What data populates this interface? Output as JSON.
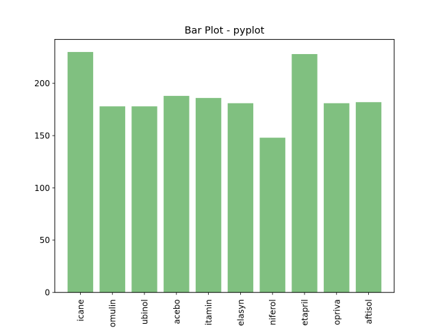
{
  "chart_data": {
    "type": "bar",
    "title": "Bar Plot - pyplot",
    "xlabel": "",
    "ylabel": "",
    "categories": [
      "icane",
      "omulin",
      "ubinol",
      "acebo",
      "itamin",
      "elasyn",
      "niferol",
      "etapril",
      "opriva",
      "aftisol"
    ],
    "values": [
      230,
      178,
      178,
      188,
      186,
      181,
      148,
      228,
      181,
      182
    ],
    "ylim": [
      0,
      242
    ],
    "yticks": [
      0,
      50,
      100,
      150,
      200
    ],
    "bar_color": "#80c080",
    "grid": false,
    "x_tick_rotation": "vertical"
  }
}
